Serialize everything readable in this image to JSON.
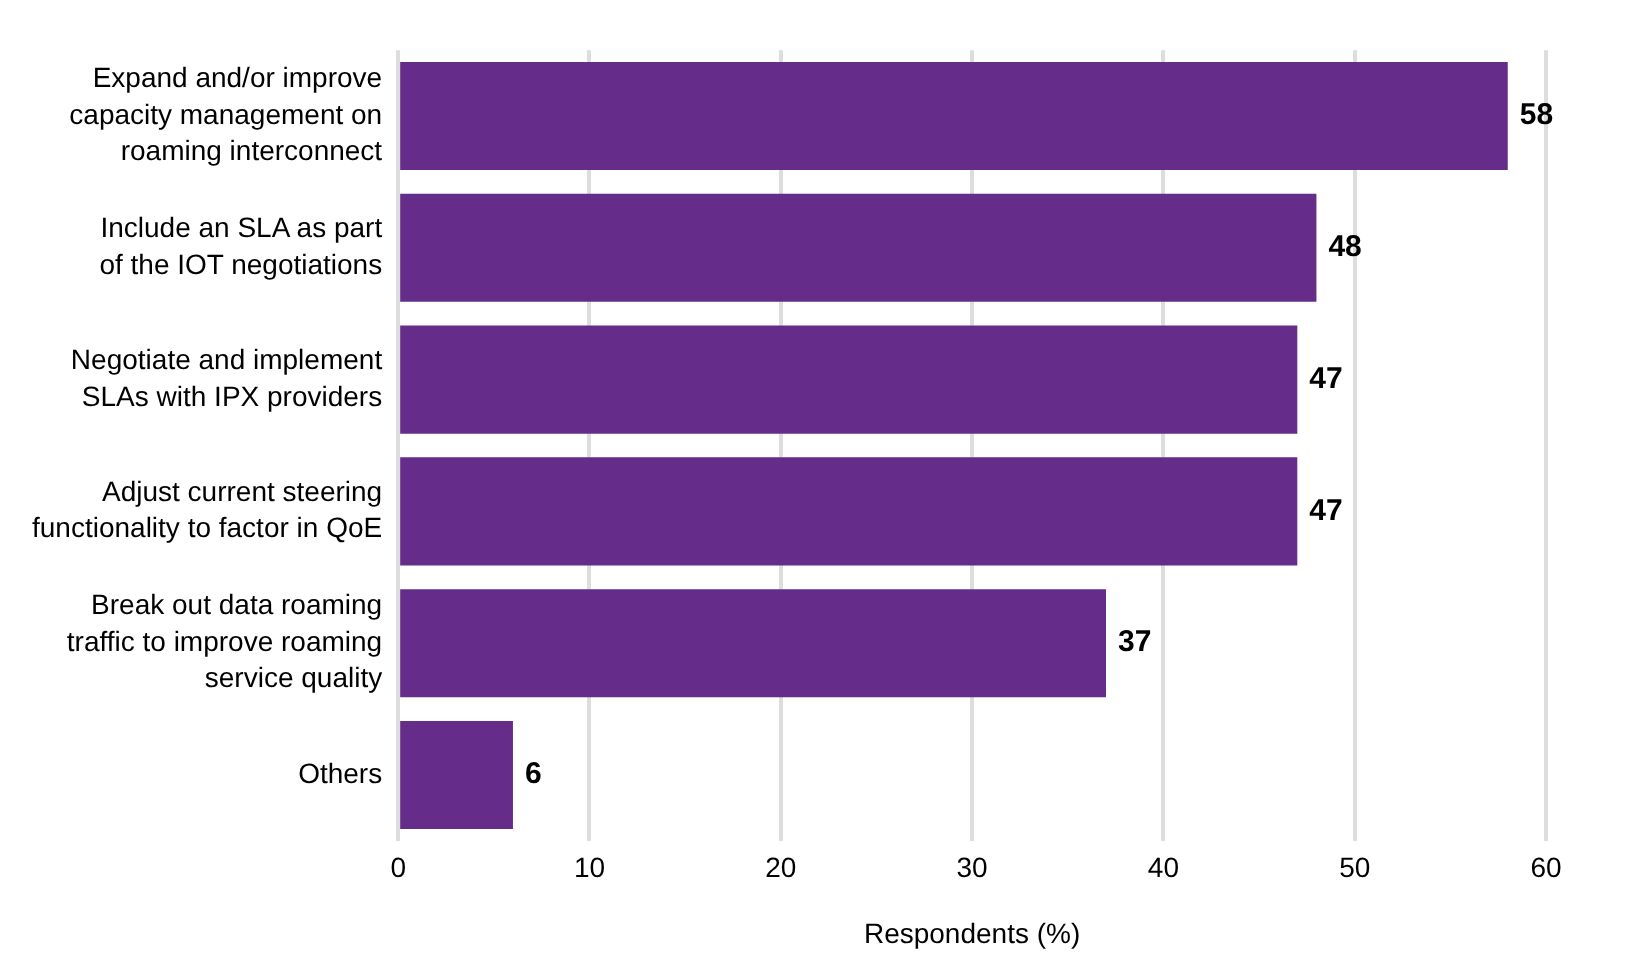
{
  "chart_data": {
    "type": "bar",
    "orientation": "horizontal",
    "categories": [
      "Expand and/or improve\ncapacity management on\nroaming interconnect",
      "Include an SLA as part\nof the IOT negotiations",
      "Negotiate and implement\nSLAs with IPX providers",
      "Adjust current steering\nfunctionality to factor in QoE",
      "Break out data roaming\ntraffic to improve roaming\nservice quality",
      "Others"
    ],
    "values": [
      58,
      48,
      47,
      47,
      37,
      6
    ],
    "color": "#652d89",
    "xlabel": "Respondents (%)",
    "xlim": [
      0,
      60
    ],
    "xticks": [
      0,
      10,
      20,
      30,
      40,
      50,
      60
    ],
    "grid": "x",
    "data_labels": true
  }
}
